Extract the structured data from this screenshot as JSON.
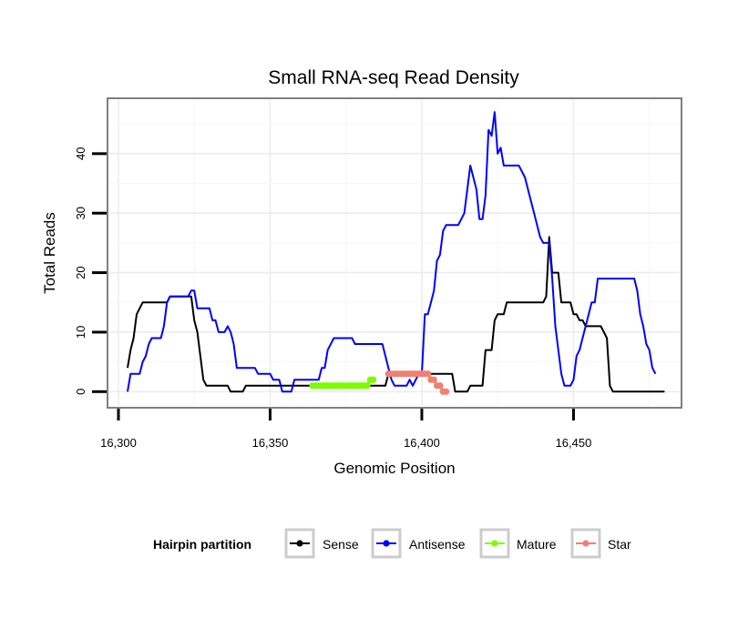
{
  "chart_data": {
    "type": "line",
    "title": "Small RNA-seq Read Density",
    "xlabel": "Genomic Position",
    "ylabel": "Total Reads",
    "xlim": [
      16297,
      16485
    ],
    "ylim": [
      -2.4,
      49
    ],
    "x_ticks": [
      16300,
      16350,
      16400,
      16450
    ],
    "x_tick_labels": [
      "16,300",
      "16,350",
      "16,400",
      "16,450"
    ],
    "y_ticks": [
      0,
      10,
      20,
      30,
      40
    ],
    "y_tick_labels": [
      "0",
      "10",
      "20",
      "30",
      "40"
    ],
    "grid": true,
    "legend": {
      "title": "Hairpin partition",
      "position": "bottom",
      "entries": [
        "Sense",
        "Antisense",
        "Mature",
        "Star"
      ]
    },
    "series": [
      {
        "name": "Sense",
        "color": "#000000",
        "style": "line",
        "points": [
          [
            16303,
            4
          ],
          [
            16304,
            7
          ],
          [
            16305,
            9
          ],
          [
            16306,
            13
          ],
          [
            16307,
            14
          ],
          [
            16308,
            15
          ],
          [
            16316,
            15
          ],
          [
            16317,
            16
          ],
          [
            16324,
            16
          ],
          [
            16325,
            12
          ],
          [
            16326,
            10
          ],
          [
            16327,
            6
          ],
          [
            16328,
            2
          ],
          [
            16329,
            1
          ],
          [
            16336,
            1
          ],
          [
            16337,
            0
          ],
          [
            16341,
            0
          ],
          [
            16342,
            1
          ],
          [
            16358,
            1
          ],
          [
            16388,
            1
          ],
          [
            16389,
            3
          ],
          [
            16390,
            3
          ],
          [
            16410,
            3
          ],
          [
            16411,
            0
          ],
          [
            16415,
            0
          ],
          [
            16416,
            1
          ],
          [
            16420,
            1
          ],
          [
            16421,
            7
          ],
          [
            16423,
            7
          ],
          [
            16424,
            12
          ],
          [
            16425,
            13
          ],
          [
            16427,
            13
          ],
          [
            16428,
            15
          ],
          [
            16440,
            15
          ],
          [
            16441,
            16
          ],
          [
            16442,
            26
          ],
          [
            16443,
            20
          ],
          [
            16445,
            20
          ],
          [
            16446,
            15
          ],
          [
            16449,
            15
          ],
          [
            16450,
            13
          ],
          [
            16451,
            13
          ],
          [
            16452,
            12
          ],
          [
            16453,
            12
          ],
          [
            16454,
            11
          ],
          [
            16459,
            11
          ],
          [
            16460,
            10
          ],
          [
            16461,
            9
          ],
          [
            16462,
            1
          ],
          [
            16463,
            0
          ],
          [
            16480,
            0
          ]
        ]
      },
      {
        "name": "Antisense",
        "color": "#0000ff",
        "style": "line",
        "points": [
          [
            16303,
            0
          ],
          [
            16304,
            3
          ],
          [
            16307,
            3
          ],
          [
            16308,
            5
          ],
          [
            16309,
            6
          ],
          [
            16310,
            8
          ],
          [
            16311,
            9
          ],
          [
            16314,
            9
          ],
          [
            16315,
            11
          ],
          [
            16316,
            15
          ],
          [
            16317,
            16
          ],
          [
            16323,
            16
          ],
          [
            16324,
            17
          ],
          [
            16325,
            17
          ],
          [
            16326,
            14
          ],
          [
            16330,
            14
          ],
          [
            16331,
            12
          ],
          [
            16332,
            12
          ],
          [
            16333,
            10
          ],
          [
            16335,
            10
          ],
          [
            16336,
            11
          ],
          [
            16337,
            10
          ],
          [
            16338,
            8
          ],
          [
            16339,
            4
          ],
          [
            16345,
            4
          ],
          [
            16346,
            3
          ],
          [
            16350,
            3
          ],
          [
            16351,
            2
          ],
          [
            16353,
            2
          ],
          [
            16354,
            0
          ],
          [
            16357,
            0
          ],
          [
            16358,
            2
          ],
          [
            16366,
            2
          ],
          [
            16367,
            4
          ],
          [
            16368,
            4
          ],
          [
            16369,
            7
          ],
          [
            16371,
            9
          ],
          [
            16377,
            9
          ],
          [
            16378,
            8
          ],
          [
            16387,
            8
          ],
          [
            16388,
            6
          ],
          [
            16389,
            4
          ],
          [
            16390,
            2
          ],
          [
            16391,
            1
          ],
          [
            16395,
            1
          ],
          [
            16396,
            2
          ],
          [
            16397,
            1
          ],
          [
            16399,
            3
          ],
          [
            16400,
            3
          ],
          [
            16401,
            13
          ],
          [
            16402,
            13
          ],
          [
            16403,
            15
          ],
          [
            16404,
            17
          ],
          [
            16405,
            22
          ],
          [
            16406,
            23
          ],
          [
            16407,
            27
          ],
          [
            16408,
            28
          ],
          [
            16412,
            28
          ],
          [
            16413,
            29
          ],
          [
            16414,
            30
          ],
          [
            16415,
            34
          ],
          [
            16416,
            38
          ],
          [
            16418,
            34
          ],
          [
            16419,
            29
          ],
          [
            16420,
            29
          ],
          [
            16421,
            33
          ],
          [
            16422,
            44
          ],
          [
            16423,
            43
          ],
          [
            16424,
            47
          ],
          [
            16425,
            40
          ],
          [
            16426,
            41
          ],
          [
            16427,
            38
          ],
          [
            16432,
            38
          ],
          [
            16434,
            36
          ],
          [
            16435,
            34
          ],
          [
            16437,
            30
          ],
          [
            16438,
            28
          ],
          [
            16439,
            26
          ],
          [
            16440,
            25
          ],
          [
            16442,
            25
          ],
          [
            16443,
            19
          ],
          [
            16444,
            11
          ],
          [
            16445,
            7
          ],
          [
            16446,
            3
          ],
          [
            16447,
            1
          ],
          [
            16449,
            1
          ],
          [
            16450,
            2
          ],
          [
            16451,
            6
          ],
          [
            16452,
            7
          ],
          [
            16453,
            9
          ],
          [
            16454,
            11
          ],
          [
            16456,
            15
          ],
          [
            16457,
            15
          ],
          [
            16458,
            19
          ],
          [
            16470,
            19
          ],
          [
            16471,
            17
          ],
          [
            16472,
            13
          ],
          [
            16473,
            11
          ],
          [
            16474,
            8
          ],
          [
            16475,
            7
          ],
          [
            16476,
            4
          ],
          [
            16477,
            3
          ]
        ]
      },
      {
        "name": "Mature",
        "color": "#7cfc00",
        "style": "points",
        "points": [
          [
            16364,
            1
          ],
          [
            16365,
            1
          ],
          [
            16366,
            1
          ],
          [
            16367,
            1
          ],
          [
            16368,
            1
          ],
          [
            16369,
            1
          ],
          [
            16370,
            1
          ],
          [
            16371,
            1
          ],
          [
            16372,
            1
          ],
          [
            16373,
            1
          ],
          [
            16374,
            1
          ],
          [
            16375,
            1
          ],
          [
            16376,
            1
          ],
          [
            16377,
            1
          ],
          [
            16378,
            1
          ],
          [
            16379,
            1
          ],
          [
            16380,
            1
          ],
          [
            16381,
            1
          ],
          [
            16382,
            1
          ],
          [
            16383,
            2
          ],
          [
            16384,
            2
          ]
        ]
      },
      {
        "name": "Star",
        "color": "#f08070",
        "style": "points",
        "points": [
          [
            16389,
            3
          ],
          [
            16390,
            3
          ],
          [
            16391,
            3
          ],
          [
            16392,
            3
          ],
          [
            16393,
            3
          ],
          [
            16394,
            3
          ],
          [
            16395,
            3
          ],
          [
            16396,
            3
          ],
          [
            16397,
            3
          ],
          [
            16398,
            3
          ],
          [
            16399,
            3
          ],
          [
            16400,
            3
          ],
          [
            16401,
            3
          ],
          [
            16402,
            3
          ],
          [
            16403,
            2
          ],
          [
            16404,
            2
          ],
          [
            16405,
            1
          ],
          [
            16406,
            1
          ],
          [
            16407,
            0
          ],
          [
            16408,
            0
          ]
        ]
      }
    ]
  }
}
